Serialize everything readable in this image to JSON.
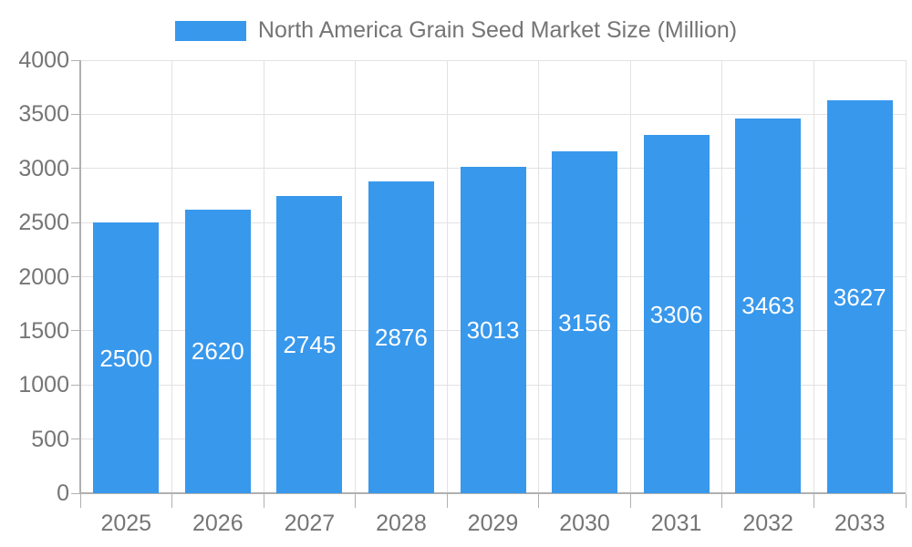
{
  "legend": {
    "label": "North America Grain Seed Market Size (Million)",
    "swatch_color": "#3898EC"
  },
  "chart_data": {
    "type": "bar",
    "title": "North America Grain Seed Market Size (Million)",
    "categories": [
      "2025",
      "2026",
      "2027",
      "2028",
      "2029",
      "2030",
      "2031",
      "2032",
      "2033"
    ],
    "values": [
      2500,
      2620,
      2745,
      2876,
      3013,
      3156,
      3306,
      3463,
      3627
    ],
    "xlabel": "",
    "ylabel": "",
    "ylim": [
      0,
      4000
    ],
    "yticks": [
      0,
      500,
      1000,
      1500,
      2000,
      2500,
      3000,
      3500,
      4000
    ],
    "grid": true,
    "legend_position": "top",
    "bar_color": "#3898EC",
    "bar_label_color": "#ffffff",
    "text_color": "#757575",
    "axis_color": "#b0b0b0",
    "grid_color": "#e2e2e2"
  }
}
